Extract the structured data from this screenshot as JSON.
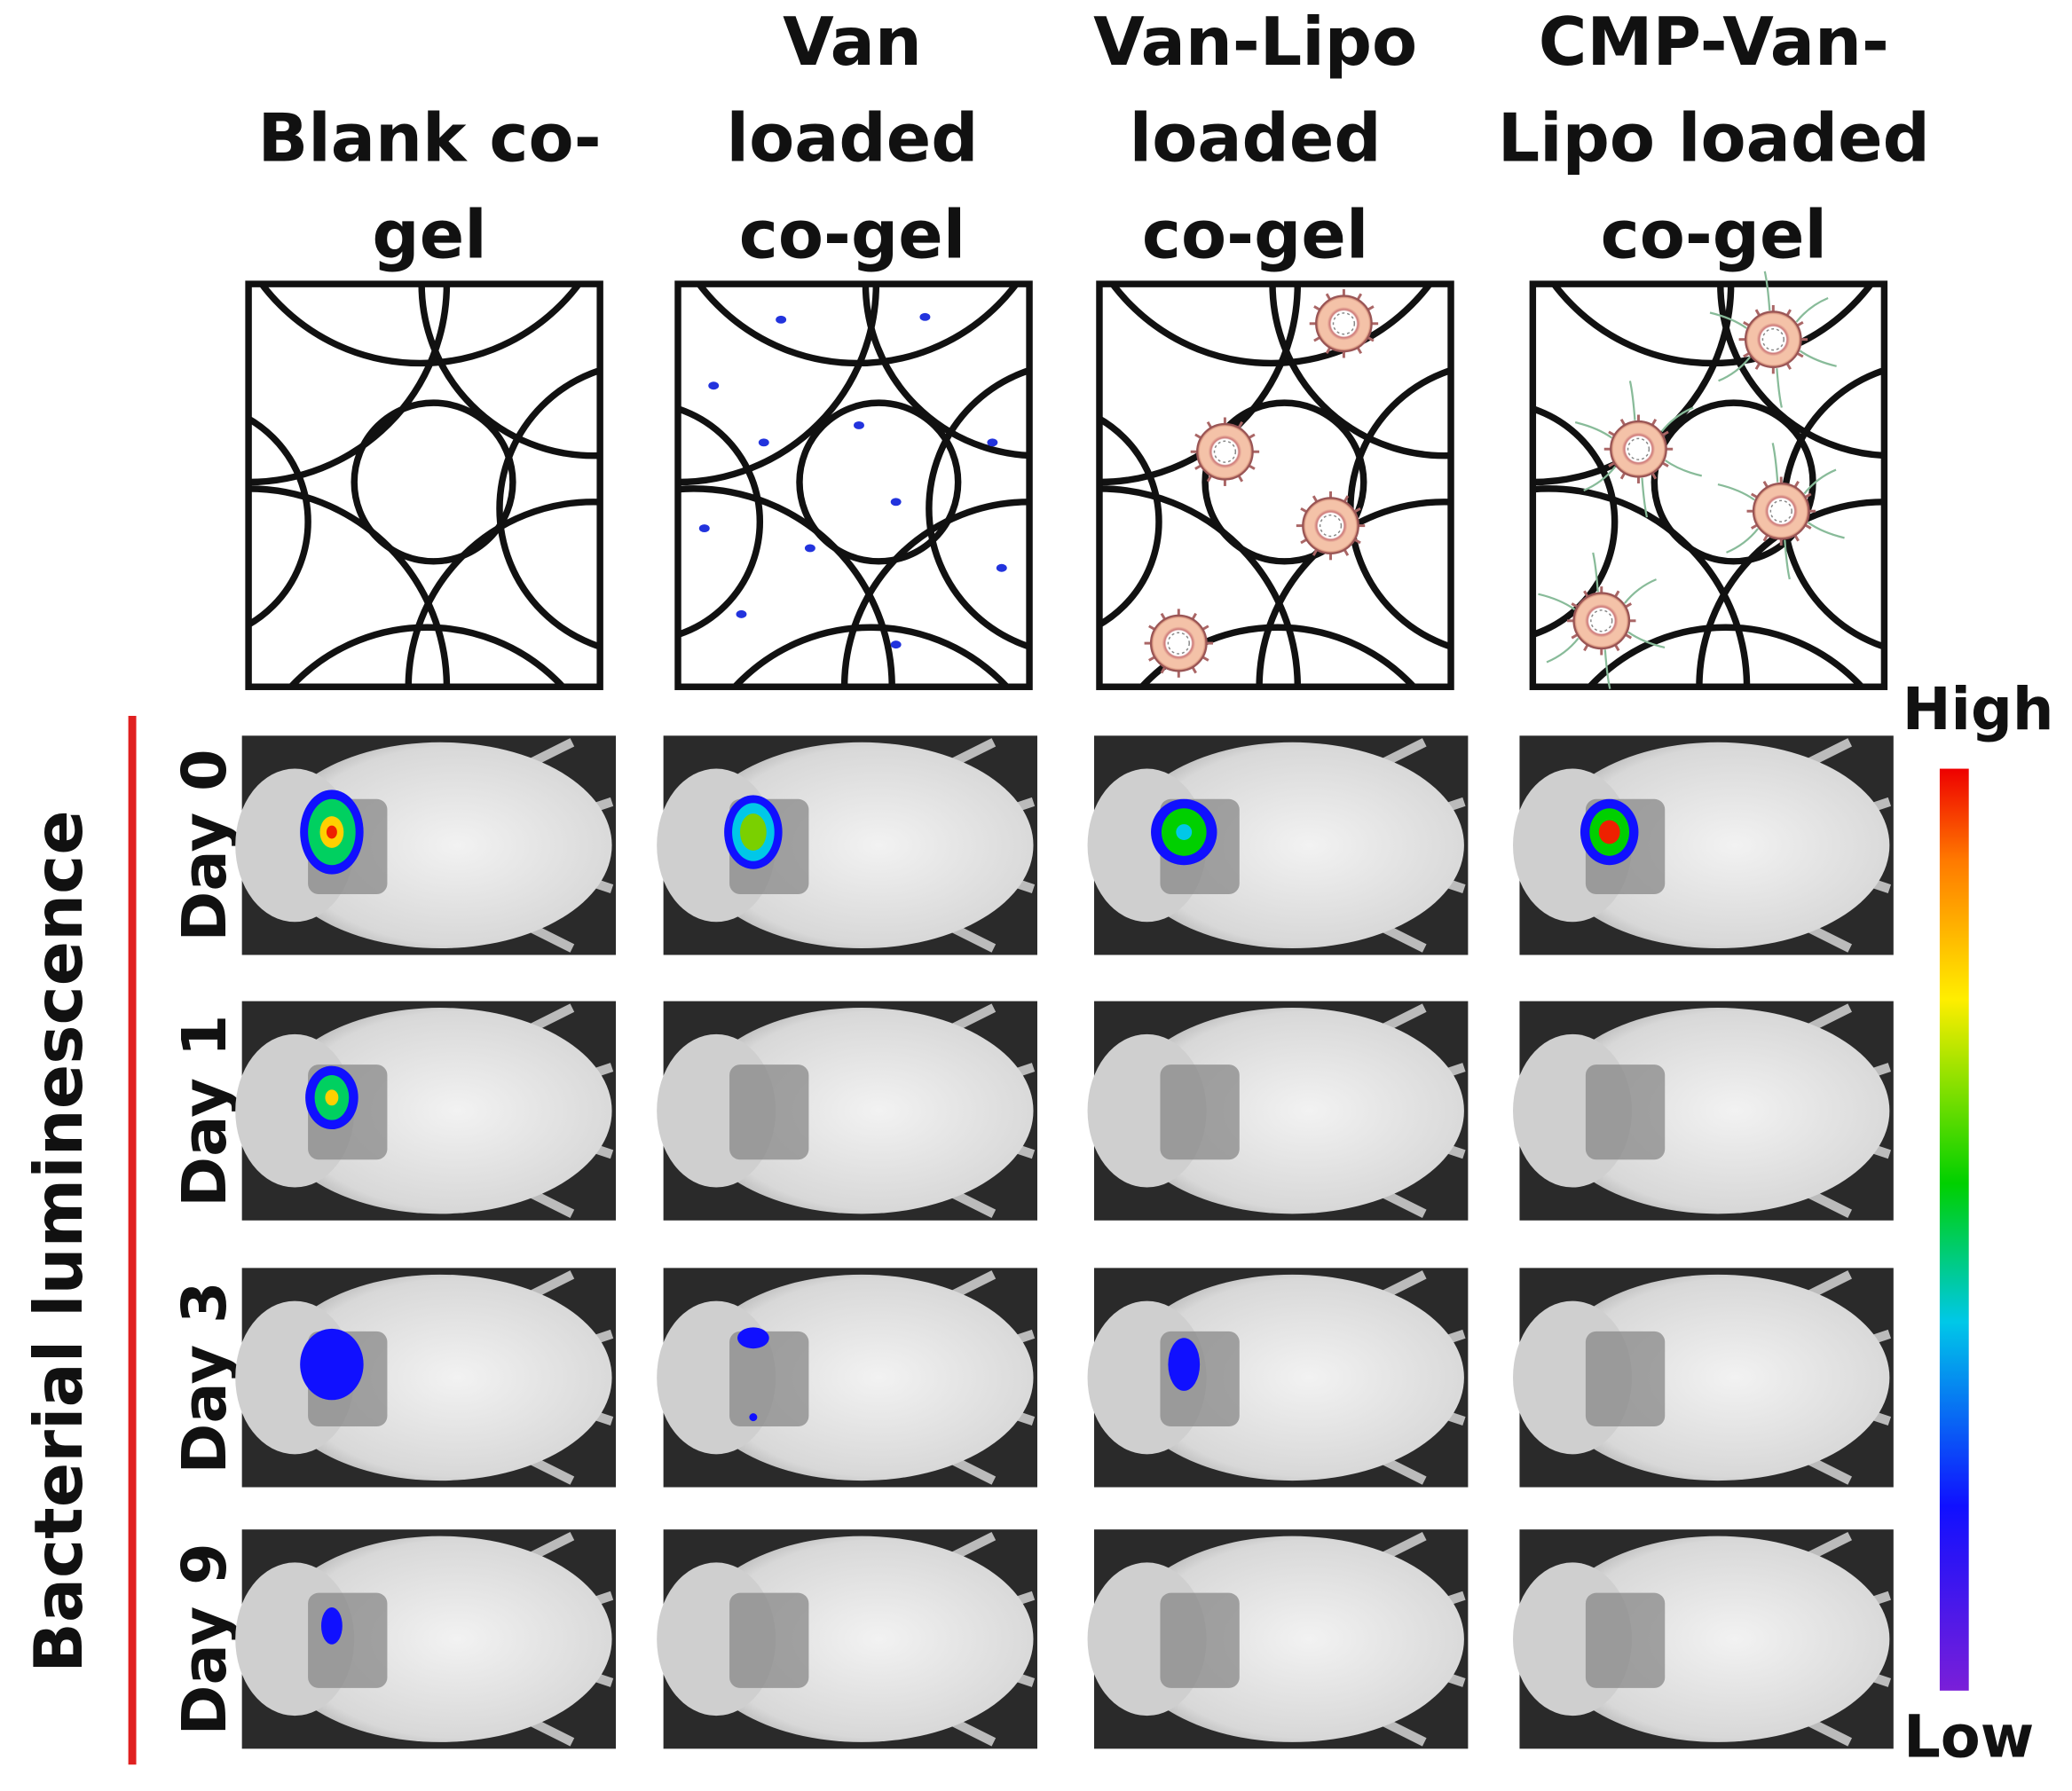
{
  "columns": [
    {
      "lines": [
        "Blank co-",
        "gel"
      ]
    },
    {
      "lines": [
        "Van",
        "loaded",
        "co-gel"
      ]
    },
    {
      "lines": [
        "Van-Lipo",
        "loaded",
        "co-gel"
      ]
    },
    {
      "lines": [
        "CMP-Van-",
        "Lipo loaded",
        "co-gel"
      ]
    }
  ],
  "rows": [
    "Day 0",
    "Day 1",
    "Day 3",
    "Day 9"
  ],
  "side_label": "Bacterial luminescence",
  "scale": {
    "high": "High",
    "low": "Low"
  }
}
